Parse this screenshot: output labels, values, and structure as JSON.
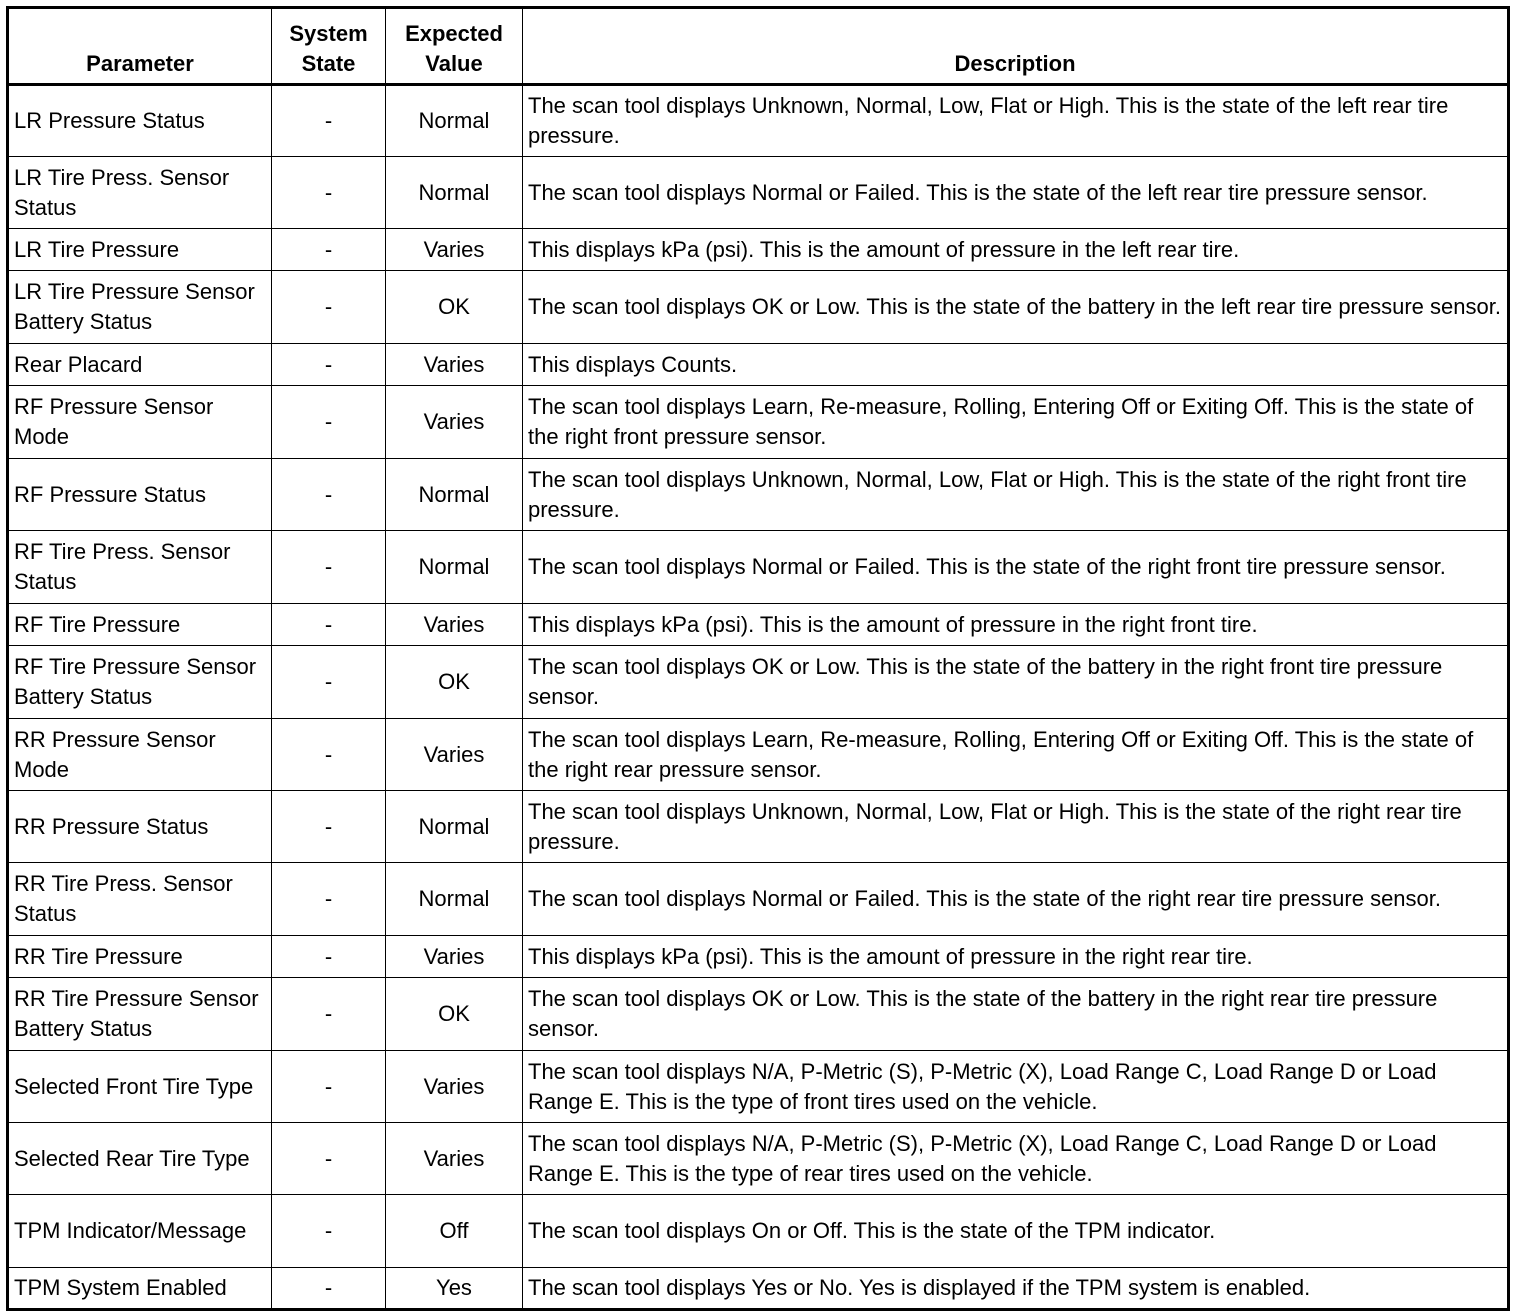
{
  "table": {
    "headers": [
      "Parameter",
      "System State",
      "Expected Value",
      "Description"
    ],
    "rows": [
      {
        "parameter": "LR Pressure Status",
        "state": "-",
        "expected": "Normal",
        "description": "The scan tool displays Unknown, Normal, Low, Flat or High. This is the state of the left rear tire pressure."
      },
      {
        "parameter": "LR Tire Press. Sensor Status",
        "state": "-",
        "expected": "Normal",
        "description": "The scan tool displays Normal or Failed. This is the state of the left rear tire pressure sensor."
      },
      {
        "parameter": "LR Tire Pressure",
        "state": "-",
        "expected": "Varies",
        "description": "This displays kPa (psi). This is the amount of pressure in the left rear tire."
      },
      {
        "parameter": "LR Tire Pressure Sensor Battery Status",
        "state": "-",
        "expected": "OK",
        "description": "The scan tool displays OK or Low. This is the state of the battery in the left rear tire pressure sensor."
      },
      {
        "parameter": "Rear Placard",
        "state": "-",
        "expected": "Varies",
        "description": "This displays Counts."
      },
      {
        "parameter": "RF Pressure Sensor Mode",
        "state": "-",
        "expected": "Varies",
        "description": "The scan tool displays Learn, Re-measure, Rolling, Entering Off or Exiting Off. This is the state of the right front pressure sensor."
      },
      {
        "parameter": "RF Pressure Status",
        "state": "-",
        "expected": "Normal",
        "description": "The scan tool displays Unknown, Normal, Low, Flat or High. This is the state of the right front tire pressure."
      },
      {
        "parameter": "RF Tire Press. Sensor Status",
        "state": "-",
        "expected": "Normal",
        "description": "The scan tool displays Normal or Failed. This is the state of the right front tire pressure sensor."
      },
      {
        "parameter": "RF Tire Pressure",
        "state": "-",
        "expected": "Varies",
        "description": "This displays kPa (psi). This is the amount of pressure in the right front tire."
      },
      {
        "parameter": "RF Tire Pressure Sensor Battery Status",
        "state": "-",
        "expected": "OK",
        "description": "The scan tool displays OK or Low. This is the state of the battery in the right front tire pressure sensor."
      },
      {
        "parameter": "RR Pressure Sensor Mode",
        "state": "-",
        "expected": "Varies",
        "description": "The scan tool displays Learn, Re-measure, Rolling, Entering Off or Exiting Off. This is the state of the right rear pressure sensor."
      },
      {
        "parameter": "RR Pressure Status",
        "state": "-",
        "expected": "Normal",
        "description": "The scan tool displays Unknown, Normal, Low, Flat or High. This is the state of the right rear tire pressure."
      },
      {
        "parameter": "RR Tire Press. Sensor Status",
        "state": "-",
        "expected": "Normal",
        "description": "The scan tool displays Normal or Failed. This is the state of the right rear tire pressure sensor."
      },
      {
        "parameter": "RR Tire Pressure",
        "state": "-",
        "expected": "Varies",
        "description": "This displays kPa (psi). This is the amount of pressure in the right rear tire."
      },
      {
        "parameter": "RR Tire Pressure Sensor Battery Status",
        "state": "-",
        "expected": "OK",
        "description": "The scan tool displays OK or Low. This is the state of the battery in the right rear tire pressure sensor."
      },
      {
        "parameter": "Selected Front Tire Type",
        "state": "-",
        "expected": "Varies",
        "description": "The scan tool displays N/A, P-Metric (S), P-Metric (X), Load Range C, Load Range D or Load Range E. This is the type of front tires used on the vehicle."
      },
      {
        "parameter": "Selected Rear Tire Type",
        "state": "-",
        "expected": "Varies",
        "description": "The scan tool displays N/A, P-Metric (S), P-Metric (X), Load Range C, Load Range D or Load Range E. This is the type of rear tires used on the vehicle."
      },
      {
        "parameter": "TPM Indicator/Message",
        "state": "-",
        "expected": "Off",
        "description": "The scan tool displays On or Off. This is the state of the TPM indicator."
      },
      {
        "parameter": "TPM System Enabled",
        "state": "-",
        "expected": "Yes",
        "description": "The scan tool displays Yes or No. Yes is displayed if the TPM system is enabled."
      }
    ]
  }
}
